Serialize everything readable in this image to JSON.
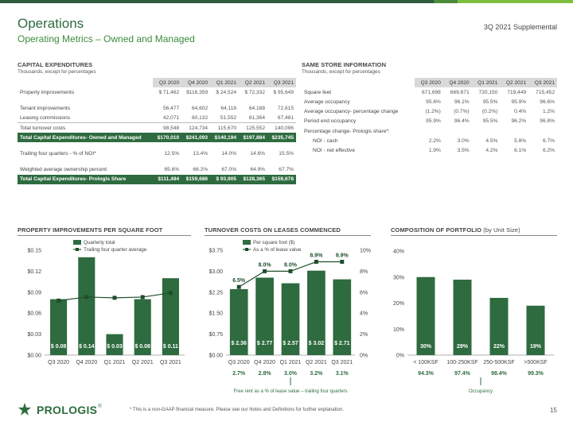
{
  "header": {
    "title": "Operations",
    "subtitle": "Operating Metrics – Owned and Managed",
    "supplemental": "3Q 2021 Supplemental"
  },
  "capex": {
    "title": "CAPITAL EXPENDITURES",
    "subtitle": "Thousands, except for percentages",
    "columns": [
      "Q3 2020",
      "Q4 2020",
      "Q1 2021",
      "Q2 2021",
      "Q3 2021"
    ],
    "rows": [
      {
        "label": "Property improvements",
        "values": [
          "$ 71,462",
          "$116,359",
          "$ 24,524",
          "$ 72,332",
          "$ 95,649"
        ],
        "style": ""
      },
      {
        "label": "",
        "values": [
          "",
          "",
          "",
          "",
          ""
        ],
        "style": "gap"
      },
      {
        "label": "Tenant improvements",
        "values": [
          "56,477",
          "64,602",
          "64,118",
          "64,188",
          "72,615"
        ],
        "style": ""
      },
      {
        "label": "Leasing commissions",
        "values": [
          "42,071",
          "60,132",
          "51,552",
          "61,364",
          "67,481"
        ],
        "style": ""
      },
      {
        "label": "Total turnover costs",
        "values": [
          "98,548",
          "124,734",
          "115,670",
          "125,552",
          "140,096"
        ],
        "style": "bd"
      },
      {
        "label": "Total Capital Expenditures- Owned and Managed",
        "values": [
          "$170,010",
          "$241,093",
          "$140,194",
          "$197,884",
          "$235,745"
        ],
        "style": "hl"
      },
      {
        "label": "",
        "values": [
          "",
          "",
          "",
          "",
          ""
        ],
        "style": "gap"
      },
      {
        "label": "Trailing four quarters - % of NOI*",
        "values": [
          "12.5%",
          "13.4%",
          "14.0%",
          "14.6%",
          "15.5%"
        ],
        "style": ""
      },
      {
        "label": "",
        "values": [
          "",
          "",
          "",
          "",
          ""
        ],
        "style": "gap"
      },
      {
        "label": "Weighted average ownership percent",
        "values": [
          "65.6%",
          "66.2%",
          "67.0%",
          "64.9%",
          "67.7%"
        ],
        "style": ""
      },
      {
        "label": "Total Capital Expenditures- Prologis Share",
        "values": [
          "$111,484",
          "$159,686",
          "$ 93,905",
          "$128,365",
          "$159,678"
        ],
        "style": "hl"
      }
    ]
  },
  "samestore": {
    "title": "SAME STORE INFORMATION",
    "subtitle": "Thousands, except for percentages",
    "columns": [
      "Q3 2020",
      "Q4 2020",
      "Q1 2021",
      "Q2 2021",
      "Q3 2021"
    ],
    "rows": [
      {
        "label": "Square feet",
        "values": [
          "671,698",
          "669,671",
          "720,150",
          "719,449",
          "715,452"
        ],
        "indent": false
      },
      {
        "label": "Average occupancy",
        "values": [
          "95.6%",
          "96.1%",
          "95.5%",
          "95.9%",
          "96.6%"
        ],
        "indent": false
      },
      {
        "label": "Average occupancy- percentage change",
        "values": [
          "(1.2%)",
          "(0.7%)",
          "(0.2%)",
          "0.4%",
          "1.2%"
        ],
        "indent": false
      },
      {
        "label": "Period end occupancy",
        "values": [
          "95.9%",
          "96.4%",
          "95.5%",
          "96.2%",
          "96.8%"
        ],
        "indent": false
      },
      {
        "label": "Percentage change- Prologis share*:",
        "values": [
          "",
          "",
          "",
          "",
          ""
        ],
        "indent": false
      },
      {
        "label": "NOI - cash",
        "values": [
          "2.2%",
          "3.0%",
          "4.5%",
          "5.8%",
          "6.7%"
        ],
        "indent": true
      },
      {
        "label": "NOI - net effective",
        "values": [
          "1.9%",
          "3.5%",
          "4.2%",
          "6.1%",
          "6.2%"
        ],
        "indent": true
      }
    ]
  },
  "charts": {
    "pi": {
      "title": "PROPERTY IMPROVEMENTS PER SQUARE FOOT",
      "legend_bar": "Quarterly total",
      "legend_line": "Trailing four quarter average"
    },
    "tc": {
      "title": "TURNOVER COSTS ON LEASES COMMENCED",
      "legend_bar": "Per square foot ($)",
      "legend_line": "As a % of lease value",
      "footnote": "Free rent as a % of lease value – trailing four quarters"
    },
    "cp": {
      "title": "COMPOSITION OF PORTFOLIO",
      "title_suffix": "(by Unit Size)",
      "footnote": "Occupancy"
    }
  },
  "chart_data": [
    {
      "type": "bar",
      "title": "PROPERTY IMPROVEMENTS PER SQUARE FOOT",
      "categories": [
        "Q3 2020",
        "Q4 2020",
        "Q1 2021",
        "Q2 2021",
        "Q3 2021"
      ],
      "series": [
        {
          "name": "Quarterly total",
          "type": "bar",
          "values": [
            0.08,
            0.14,
            0.03,
            0.08,
            0.11
          ],
          "labels": [
            "$ 0.08",
            "$ 0.14",
            "$ 0.03",
            "$ 0.08",
            "$ 0.11"
          ]
        },
        {
          "name": "Trailing four quarter average",
          "type": "line",
          "values": [
            0.078,
            0.083,
            0.082,
            0.083,
            0.089
          ]
        }
      ],
      "ylim": [
        0,
        0.15
      ],
      "yticks": [
        "$0.00",
        "$0.03",
        "$0.06",
        "$0.09",
        "$0.12",
        "$0.15"
      ],
      "grid": false,
      "legend": "top"
    },
    {
      "type": "bar",
      "title": "TURNOVER COSTS ON LEASES COMMENCED",
      "categories": [
        "Q3 2020",
        "Q4 2020",
        "Q1 2021",
        "Q2 2021",
        "Q3 2021"
      ],
      "series": [
        {
          "name": "Per square foot ($)",
          "type": "bar",
          "values": [
            2.36,
            2.77,
            2.57,
            3.02,
            2.71
          ],
          "labels": [
            "$ 2.36",
            "$ 2.77",
            "$ 2.57",
            "$ 3.02",
            "$ 2.71"
          ]
        },
        {
          "name": "As a % of lease value",
          "type": "line",
          "axis": "right",
          "values": [
            6.5,
            8.0,
            8.0,
            8.9,
            8.9
          ],
          "labels": [
            "6.5%",
            "8.0%",
            "8.0%",
            "8.9%",
            "8.9%"
          ]
        }
      ],
      "ylim": [
        0,
        3.75
      ],
      "yticks": [
        "$0.00",
        "$0.75",
        "$1.50",
        "$2.25",
        "$3.00",
        "$3.75"
      ],
      "y2lim": [
        0,
        10
      ],
      "y2ticks": [
        "0%",
        "2%",
        "4%",
        "6%",
        "8%",
        "10%"
      ],
      "below_values": [
        "2.7%",
        "2.8%",
        "3.0%",
        "3.2%",
        "3.1%"
      ],
      "grid": false,
      "legend": "top"
    },
    {
      "type": "bar",
      "title": "COMPOSITION OF PORTFOLIO",
      "categories": [
        "< 100KSF",
        "100-250KSF",
        "250-500KSF",
        ">500KSF"
      ],
      "series": [
        {
          "name": "Composition",
          "type": "bar",
          "values": [
            30,
            29,
            22,
            19
          ],
          "labels": [
            "30%",
            "29%",
            "22%",
            "19%"
          ]
        }
      ],
      "ylim": [
        0,
        40
      ],
      "yticks": [
        "0%",
        "10%",
        "20%",
        "30%",
        "40%"
      ],
      "below_values": [
        "94.3%",
        "97.4%",
        "98.4%",
        "99.3%"
      ],
      "grid": false
    }
  ],
  "footer": {
    "note": "* This is a non-GAAP financial measure. Please see our Notes and Definitions for further explanation.",
    "page": "15",
    "logo": "PROLOGIS",
    "logo_mark": "®"
  },
  "colors": {
    "dark_green": "#2e6b3f",
    "bar_green": "#2e6b3f",
    "accent": "#3d8b3d",
    "light_green": "#7fbf3f"
  }
}
